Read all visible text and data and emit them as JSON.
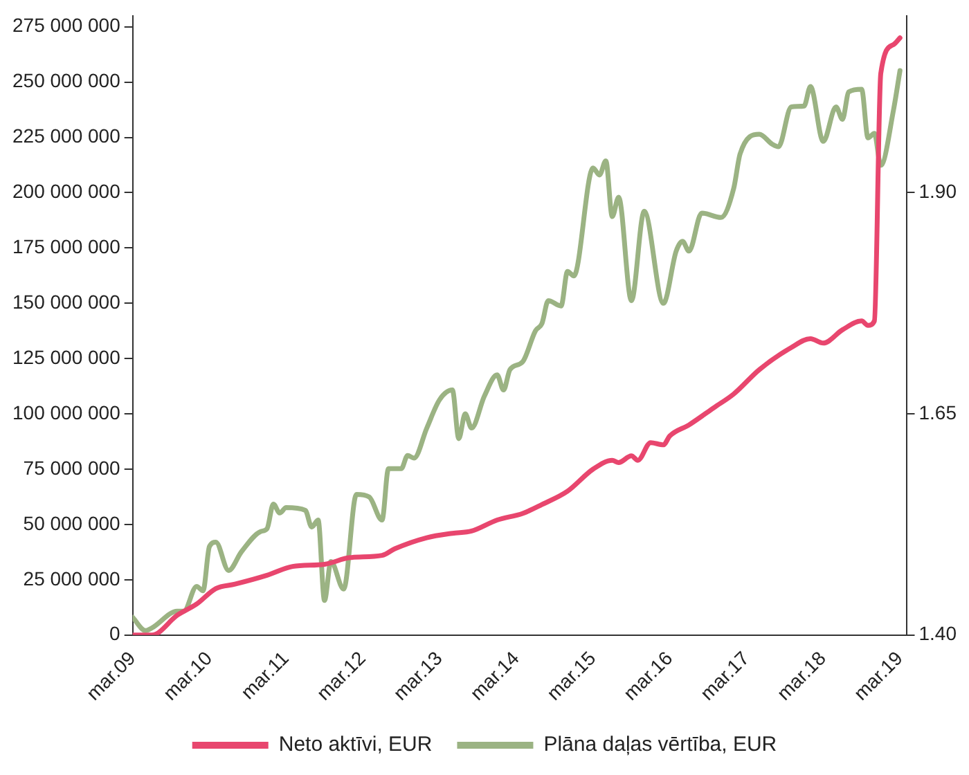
{
  "chart_data": {
    "type": "line",
    "xlim": [
      "2009-03",
      "2019-04"
    ],
    "xticks": [
      {
        "value": "2009-03",
        "label": "mar.09"
      },
      {
        "value": "2010-03",
        "label": "mar.10"
      },
      {
        "value": "2011-03",
        "label": "mar.11"
      },
      {
        "value": "2012-03",
        "label": "mar.12"
      },
      {
        "value": "2013-03",
        "label": "mar.13"
      },
      {
        "value": "2014-03",
        "label": "mar.14"
      },
      {
        "value": "2015-03",
        "label": "mar.15"
      },
      {
        "value": "2016-03",
        "label": "mar.16"
      },
      {
        "value": "2017-03",
        "label": "mar.17"
      },
      {
        "value": "2018-03",
        "label": "mar.18"
      },
      {
        "value": "2019-03",
        "label": "mar.19"
      }
    ],
    "ylim": [
      0,
      280000000
    ],
    "yticks": [
      {
        "value": 0,
        "label": "0"
      },
      {
        "value": 25000000,
        "label": "25 000 000"
      },
      {
        "value": 50000000,
        "label": "50 000 000"
      },
      {
        "value": 75000000,
        "label": "75 000 000"
      },
      {
        "value": 100000000,
        "label": "100 000 000"
      },
      {
        "value": 125000000,
        "label": "125 000 000"
      },
      {
        "value": 150000000,
        "label": "150 000 000"
      },
      {
        "value": 175000000,
        "label": "175 000 000"
      },
      {
        "value": 200000000,
        "label": "200 000 000"
      },
      {
        "value": 225000000,
        "label": "225 000 000"
      },
      {
        "value": 250000000,
        "label": "250 000 000"
      },
      {
        "value": 275000000,
        "label": "275 000 000"
      }
    ],
    "y2lim": [
      1.4,
      2.1
    ],
    "y2ticks": [
      {
        "value": 1.4,
        "label": "1.40"
      },
      {
        "value": 1.65,
        "label": "1.65"
      },
      {
        "value": 1.9,
        "label": "1.90"
      }
    ],
    "grid": false,
    "legend": "bottom",
    "marker": "none",
    "line_style": "solid",
    "series": [
      {
        "name": "Neto aktīvi, EUR",
        "color": "#e8466e",
        "x": [
          "2009-03",
          "2009-06",
          "2009-10",
          "2010-01",
          "2010-04",
          "2010-07",
          "2010-12",
          "2011-04",
          "2011-09",
          "2012-01",
          "2012-06",
          "2012-08",
          "2013-01",
          "2013-05",
          "2013-08",
          "2013-12",
          "2014-04",
          "2014-07",
          "2014-11",
          "2015-03",
          "2015-06",
          "2015-07",
          "2015-09",
          "2015-10",
          "2015-12",
          "2016-02",
          "2016-03",
          "2016-06",
          "2016-10",
          "2017-01",
          "2017-05",
          "2017-10",
          "2018-01",
          "2018-03",
          "2018-06",
          "2018-09",
          "2018-10",
          "2018-11",
          "2018-12",
          "2019-02",
          "2019-03"
        ],
        "values": [
          0,
          0,
          9000000,
          14000000,
          21000000,
          23000000,
          27000000,
          31000000,
          32000000,
          35000000,
          36000000,
          39000000,
          44000000,
          46000000,
          47000000,
          52000000,
          55000000,
          59000000,
          65000000,
          75000000,
          79000000,
          78000000,
          81000000,
          79000000,
          87000000,
          86000000,
          90000000,
          95000000,
          103000000,
          109000000,
          120000000,
          130000000,
          134000000,
          132000000,
          138000000,
          142000000,
          140000000,
          142000000,
          254000000,
          267000000,
          270000000
        ]
      },
      {
        "name": "Plāna daļas vērtība, EUR",
        "color": "#9bb383",
        "axis": "y2",
        "x": [
          "2009-03",
          "2009-05",
          "2009-06",
          "2009-10",
          "2009-11",
          "2010-01",
          "2010-02",
          "2010-03",
          "2010-04",
          "2010-06",
          "2010-08",
          "2010-11",
          "2010-12",
          "2011-01",
          "2011-02",
          "2011-03",
          "2011-06",
          "2011-07",
          "2011-08",
          "2011-09",
          "2011-10",
          "2011-12",
          "2012-02",
          "2012-04",
          "2012-06",
          "2012-07",
          "2012-09",
          "2012-10",
          "2012-11",
          "2013-01",
          "2013-03",
          "2013-05",
          "2013-06",
          "2013-07",
          "2013-08",
          "2013-10",
          "2013-12",
          "2014-01",
          "2014-02",
          "2014-04",
          "2014-06",
          "2014-07",
          "2014-08",
          "2014-10",
          "2014-11",
          "2014-12",
          "2015-03",
          "2015-04",
          "2015-05",
          "2015-06",
          "2015-07",
          "2015-09",
          "2015-11",
          "2016-02",
          "2016-04",
          "2016-05",
          "2016-06",
          "2016-08",
          "2016-11",
          "2017-01",
          "2017-02",
          "2017-05",
          "2017-07",
          "2017-08",
          "2017-10",
          "2017-12",
          "2018-01",
          "2018-03",
          "2018-05",
          "2018-06",
          "2018-07",
          "2018-09",
          "2018-10",
          "2018-11",
          "2018-12",
          "2019-02",
          "2019-03"
        ],
        "values": [
          1.42,
          1.405,
          1.408,
          1.427,
          1.427,
          1.455,
          1.45,
          1.5,
          1.505,
          1.473,
          1.494,
          1.517,
          1.52,
          1.548,
          1.538,
          1.544,
          1.541,
          1.522,
          1.53,
          1.439,
          1.483,
          1.452,
          1.559,
          1.556,
          1.53,
          1.588,
          1.588,
          1.603,
          1.6,
          1.634,
          1.666,
          1.677,
          1.622,
          1.65,
          1.634,
          1.67,
          1.694,
          1.677,
          1.7,
          1.709,
          1.744,
          1.752,
          1.778,
          1.772,
          1.811,
          1.806,
          1.928,
          1.92,
          1.936,
          1.873,
          1.895,
          1.778,
          1.879,
          1.775,
          1.834,
          1.845,
          1.834,
          1.877,
          1.872,
          1.905,
          1.944,
          1.966,
          1.955,
          1.952,
          1.997,
          1.998,
          2.02,
          1.958,
          1.997,
          1.983,
          2.014,
          2.017,
          1.962,
          1.967,
          1.931,
          1.994,
          2.038
        ]
      }
    ]
  }
}
